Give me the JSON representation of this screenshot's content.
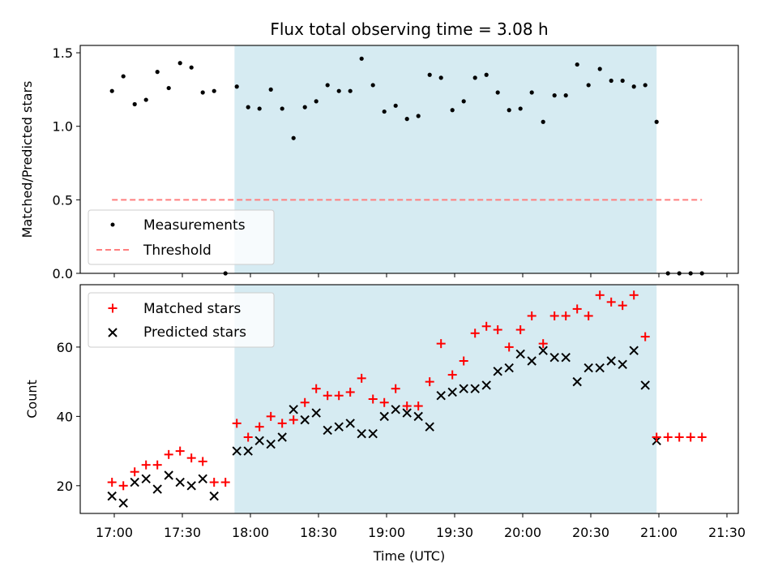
{
  "chart_data": [
    {
      "type": "scatter",
      "title": "Flux total observing time = 3.08 h",
      "xlabel": "",
      "ylabel": "Matched/Predicted stars",
      "xlim": [
        "16:45",
        "21:35"
      ],
      "ylim": [
        0,
        1.55
      ],
      "y_ticks": [
        "0.0",
        "0.5",
        "1.0",
        "1.5"
      ],
      "shaded_interval": [
        "17:53",
        "20:59"
      ],
      "shade_color": "#add8e6",
      "threshold": {
        "name": "Threshold",
        "value": 0.5,
        "x_range": [
          "16:59",
          "21:19"
        ],
        "color": "#ff7f7f"
      },
      "legend": {
        "position": "lower-left",
        "entries": [
          "Measurements",
          "Threshold"
        ]
      },
      "series": [
        {
          "name": "Measurements",
          "color": "#000000",
          "marker": "dot",
          "x": [
            "16:59",
            "17:04",
            "17:09",
            "17:14",
            "17:19",
            "17:24",
            "17:29",
            "17:34",
            "17:39",
            "17:44",
            "17:49",
            "17:54",
            "17:59",
            "18:04",
            "18:09",
            "18:14",
            "18:19",
            "18:24",
            "18:29",
            "18:34",
            "18:39",
            "18:44",
            "18:49",
            "18:54",
            "18:59",
            "19:04",
            "19:09",
            "19:14",
            "19:19",
            "19:24",
            "19:29",
            "19:34",
            "19:39",
            "19:44",
            "19:49",
            "19:54",
            "19:59",
            "20:04",
            "20:09",
            "20:14",
            "20:19",
            "20:24",
            "20:29",
            "20:34",
            "20:39",
            "20:44",
            "20:49",
            "20:54",
            "20:59",
            "21:04",
            "21:09",
            "21:14",
            "21:19"
          ],
          "y": [
            1.24,
            1.34,
            1.15,
            1.18,
            1.37,
            1.26,
            1.43,
            1.4,
            1.23,
            1.24,
            0.0,
            1.27,
            1.13,
            1.12,
            1.25,
            1.12,
            0.92,
            1.13,
            1.17,
            1.28,
            1.24,
            1.24,
            1.46,
            1.28,
            1.1,
            1.14,
            1.05,
            1.07,
            1.35,
            1.33,
            1.11,
            1.17,
            1.33,
            1.35,
            1.23,
            1.11,
            1.12,
            1.23,
            1.03,
            1.21,
            1.21,
            1.42,
            1.28,
            1.39,
            1.31,
            1.31,
            1.27,
            1.28,
            1.03,
            0.0,
            0.0,
            0.0,
            0.0
          ]
        }
      ]
    },
    {
      "type": "scatter",
      "xlabel": "Time (UTC)",
      "ylabel": "Count",
      "xlim": [
        "16:45",
        "21:35"
      ],
      "ylim": [
        12,
        78
      ],
      "x_ticks": [
        "17:00",
        "17:30",
        "18:00",
        "18:30",
        "19:00",
        "19:30",
        "20:00",
        "20:30",
        "21:00",
        "21:30"
      ],
      "y_ticks": [
        "20",
        "40",
        "60"
      ],
      "shaded_interval": [
        "17:53",
        "20:59"
      ],
      "shade_color": "#add8e6",
      "legend": {
        "position": "upper-left",
        "entries": [
          "Matched stars",
          "Predicted stars"
        ]
      },
      "series": [
        {
          "name": "Matched stars",
          "color": "#ff0000",
          "marker": "plus",
          "x": [
            "16:59",
            "17:04",
            "17:09",
            "17:14",
            "17:19",
            "17:24",
            "17:29",
            "17:34",
            "17:39",
            "17:44",
            "17:49",
            "17:54",
            "17:59",
            "18:04",
            "18:09",
            "18:14",
            "18:19",
            "18:24",
            "18:29",
            "18:34",
            "18:39",
            "18:44",
            "18:49",
            "18:54",
            "18:59",
            "19:04",
            "19:09",
            "19:14",
            "19:19",
            "19:24",
            "19:29",
            "19:34",
            "19:39",
            "19:44",
            "19:49",
            "19:54",
            "19:59",
            "20:04",
            "20:09",
            "20:14",
            "20:19",
            "20:24",
            "20:29",
            "20:34",
            "20:39",
            "20:44",
            "20:49",
            "20:54",
            "20:59",
            "21:04",
            "21:09",
            "21:14",
            "21:19"
          ],
          "y": [
            21,
            20,
            24,
            26,
            26,
            29,
            30,
            28,
            27,
            21,
            21,
            38,
            34,
            37,
            40,
            38,
            39,
            44,
            48,
            46,
            46,
            47,
            51,
            45,
            44,
            48,
            43,
            43,
            50,
            61,
            52,
            56,
            64,
            66,
            65,
            60,
            65,
            69,
            61,
            69,
            69,
            71,
            69,
            75,
            73,
            72,
            75,
            63,
            34,
            34,
            34,
            34,
            34
          ]
        },
        {
          "name": "Predicted stars",
          "color": "#000000",
          "marker": "x",
          "x": [
            "16:59",
            "17:04",
            "17:09",
            "17:14",
            "17:19",
            "17:24",
            "17:29",
            "17:34",
            "17:39",
            "17:44",
            "17:54",
            "17:59",
            "18:04",
            "18:09",
            "18:14",
            "18:19",
            "18:24",
            "18:29",
            "18:34",
            "18:39",
            "18:44",
            "18:49",
            "18:54",
            "18:59",
            "19:04",
            "19:09",
            "19:14",
            "19:19",
            "19:24",
            "19:29",
            "19:34",
            "19:39",
            "19:44",
            "19:49",
            "19:54",
            "19:59",
            "20:04",
            "20:09",
            "20:14",
            "20:19",
            "20:24",
            "20:29",
            "20:34",
            "20:39",
            "20:44",
            "20:49",
            "20:54",
            "20:59"
          ],
          "y": [
            17,
            15,
            21,
            22,
            19,
            23,
            21,
            20,
            22,
            17,
            30,
            30,
            33,
            32,
            34,
            42,
            39,
            41,
            36,
            37,
            38,
            35,
            35,
            40,
            42,
            41,
            40,
            37,
            46,
            47,
            48,
            48,
            49,
            53,
            54,
            58,
            56,
            59,
            57,
            57,
            50,
            54,
            54,
            56,
            55,
            59,
            49,
            33
          ]
        }
      ]
    }
  ]
}
